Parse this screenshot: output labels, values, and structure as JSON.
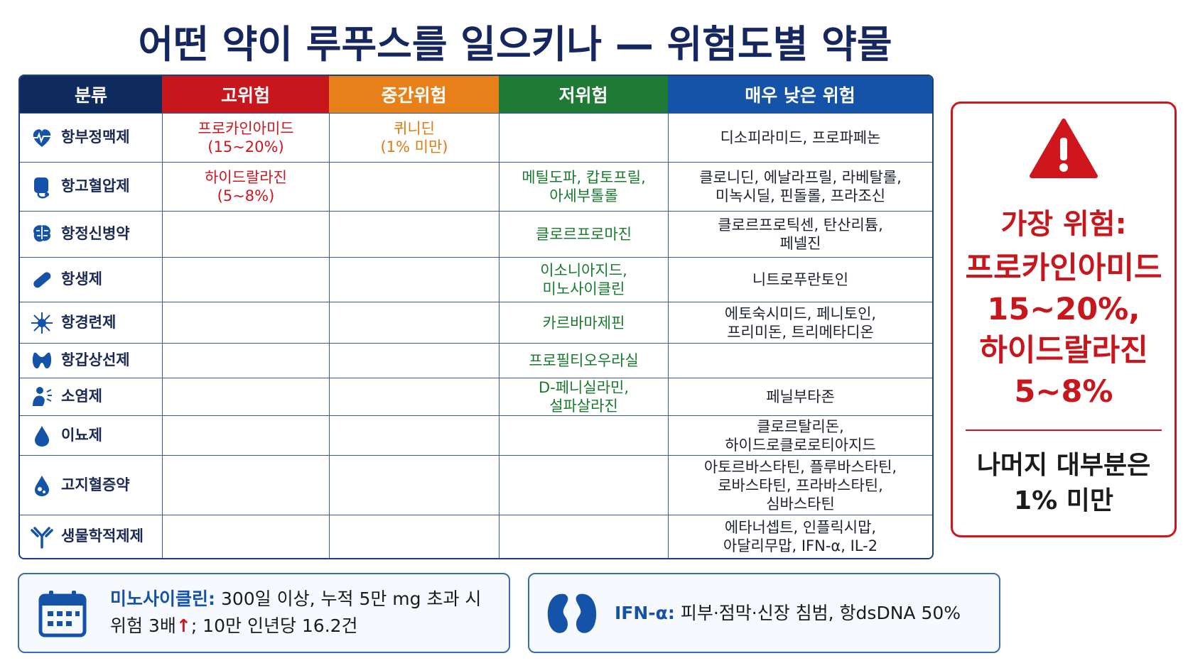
{
  "title": "어떤 약이 루푸스를 일으키나 — 위험도별 약물",
  "table": {
    "headers": [
      "분류",
      "고위험",
      "중간위험",
      "저위험",
      "매우 낮은 위험"
    ],
    "rows": [
      [
        "항부정맥제",
        "프로카인아미드\n(15~20%)",
        "퀴니딘\n(1% 미만)",
        null,
        "디소피라미드, 프로파페논"
      ],
      [
        "항고혈압제",
        "하이드랄라진\n(5~8%)",
        null,
        "메틸도파, 캅토프릴,\n아세부톨롤",
        "클로니딘, 에날라프릴, 라베탈롤,\n미녹시딜, 핀돌롤, 프라조신"
      ],
      [
        "항정신병약",
        null,
        null,
        "클로르프로마진",
        "클로르프로틱센, 탄산리튬,\n페넬진"
      ],
      [
        "항생제",
        null,
        null,
        "이소니아지드,\n미노사이클린",
        "니트로푸란토인"
      ],
      [
        "항경련제",
        null,
        null,
        "카르바마제핀",
        "에토숙시미드, 페니토인,\n프리미돈, 트리메타디온"
      ],
      [
        "항갑상선제",
        null,
        null,
        "프로필티오우라실",
        null
      ],
      [
        "소염제",
        null,
        null,
        "D-페니실라민,\n설파살라진",
        "페닐부타존"
      ],
      [
        "이뇨제",
        null,
        null,
        null,
        "클로르탈리돈,\n하이드로클로로티아지드"
      ],
      [
        "고지혈증약",
        null,
        null,
        null,
        "아토르바스타틴, 플루바스타틴,\n로바스타틴, 프라바스타틴,\n심바스타틴"
      ],
      [
        "생물학적제제",
        null,
        null,
        null,
        "에타너셉트, 인플릭시맙,\n아달리무맙, IFN-α, IL-2"
      ]
    ]
  },
  "side_box": {
    "heading": "가장 위험:",
    "body": "프로카인아미드\n15~20%,\n하이드랄라진\n5~8%",
    "footer": "나머지 대부분은\n1% 미만"
  },
  "notes": [
    {
      "label": "미노사이클린:",
      "text": "300일 이상, 누적 5만 mg 초과 시\n위험 3배",
      "arrow": "↑",
      "text_after": "; 10만 인년당 16.2건"
    },
    {
      "label": "IFN-α:",
      "text": "피부·점막·신장 침범, 항dsDNA 50%"
    }
  ]
}
